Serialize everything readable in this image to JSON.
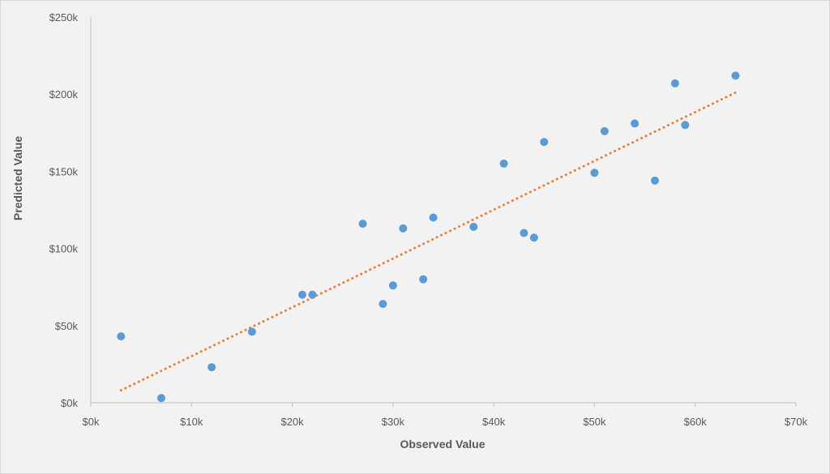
{
  "chart_data": {
    "type": "scatter",
    "xlabel": "Observed Value",
    "ylabel": "Predicted Value",
    "xlim": [
      0,
      70000
    ],
    "ylim": [
      0,
      250000
    ],
    "x_ticks": [
      0,
      10000,
      20000,
      30000,
      40000,
      50000,
      60000,
      70000
    ],
    "x_tick_labels": [
      "$0k",
      "$10k",
      "$20k",
      "$30k",
      "$40k",
      "$50k",
      "$60k",
      "$70k"
    ],
    "y_ticks": [
      0,
      50000,
      100000,
      150000,
      200000,
      250000
    ],
    "y_tick_labels": [
      "$0k",
      "$50k",
      "$100k",
      "$150k",
      "$200k",
      "$250k"
    ],
    "grid": false,
    "points": [
      {
        "x": 3000,
        "y": 43000
      },
      {
        "x": 7000,
        "y": 3000
      },
      {
        "x": 12000,
        "y": 23000
      },
      {
        "x": 16000,
        "y": 46000
      },
      {
        "x": 21000,
        "y": 70000
      },
      {
        "x": 22000,
        "y": 70000
      },
      {
        "x": 27000,
        "y": 116000
      },
      {
        "x": 29000,
        "y": 64000
      },
      {
        "x": 30000,
        "y": 76000
      },
      {
        "x": 31000,
        "y": 113000
      },
      {
        "x": 33000,
        "y": 80000
      },
      {
        "x": 34000,
        "y": 120000
      },
      {
        "x": 38000,
        "y": 114000
      },
      {
        "x": 41000,
        "y": 155000
      },
      {
        "x": 43000,
        "y": 110000
      },
      {
        "x": 44000,
        "y": 107000
      },
      {
        "x": 45000,
        "y": 169000
      },
      {
        "x": 50000,
        "y": 149000
      },
      {
        "x": 51000,
        "y": 176000
      },
      {
        "x": 54000,
        "y": 181000
      },
      {
        "x": 56000,
        "y": 144000
      },
      {
        "x": 58000,
        "y": 207000
      },
      {
        "x": 59000,
        "y": 180000
      },
      {
        "x": 64000,
        "y": 212000
      }
    ],
    "trendline": {
      "style": "dotted",
      "points": [
        {
          "x": 3000,
          "y": 8000
        },
        {
          "x": 64000,
          "y": 201000
        }
      ]
    },
    "colors": {
      "points": "#5b9bd5",
      "trendline": "#ed7d31",
      "axis": "#bfbfbf"
    }
  }
}
